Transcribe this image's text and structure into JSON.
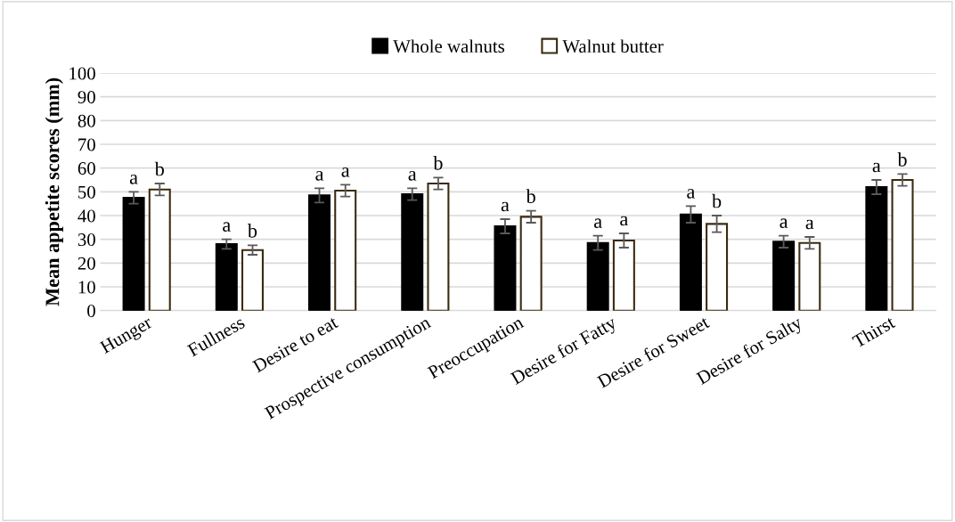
{
  "chart_data": {
    "type": "bar",
    "ylabel": "Mean appetite scores (mm)",
    "categories": [
      "Hunger",
      "Fullness",
      "Desire to eat",
      "Prospective consumption",
      "Preoccupation",
      "Desire for Fatty",
      "Desire for Sweet",
      "Desire for Salty",
      "Thirst"
    ],
    "series": [
      {
        "name": "Whole walnuts",
        "color": "#000000",
        "values": [
          47.5,
          28,
          48.5,
          49,
          35.5,
          28.5,
          40.5,
          29,
          52
        ],
        "errors": [
          2.5,
          2,
          3,
          2.5,
          3,
          3,
          3.5,
          2.5,
          3
        ],
        "value_labels": [
          "a",
          "a",
          "a",
          "a",
          "a",
          "a",
          "a",
          "a",
          "a"
        ]
      },
      {
        "name": "Walnut butter",
        "color": "#ffffff",
        "values": [
          51,
          25.5,
          50.5,
          53.5,
          39.5,
          29.5,
          36.5,
          28.5,
          55
        ],
        "errors": [
          2.5,
          2,
          2.5,
          2.5,
          2.5,
          3,
          3.5,
          2.5,
          2.5
        ],
        "value_labels": [
          "b",
          "b",
          "a",
          "b",
          "b",
          "a",
          "b",
          "a",
          "b"
        ]
      }
    ],
    "ylim": [
      0,
      100
    ],
    "yticks": [
      0,
      10,
      20,
      30,
      40,
      50,
      60,
      70,
      80,
      90,
      100
    ],
    "grid": "y",
    "legend": "top"
  }
}
